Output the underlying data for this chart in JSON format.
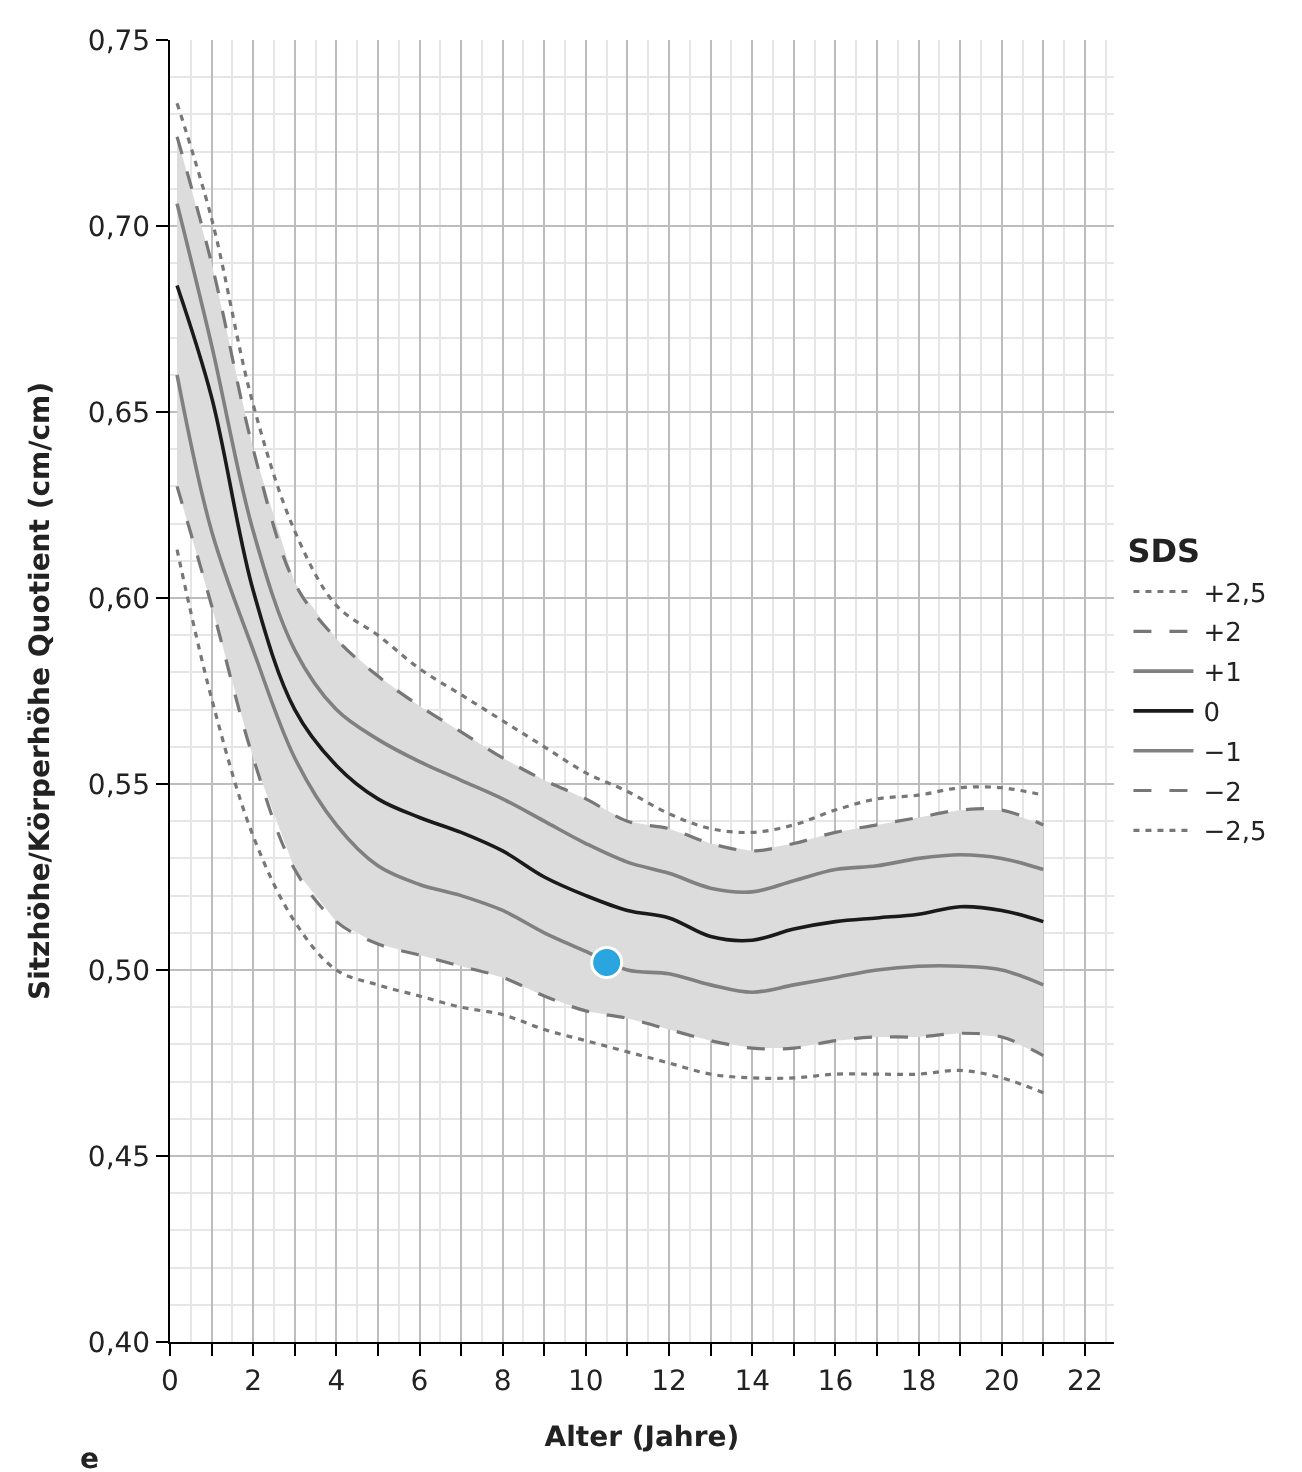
{
  "chart_data": {
    "type": "line",
    "xlabel": "Alter (Jahre)",
    "ylabel": "Sitzhöhe/Körperhöhe Quotient (cm/cm)",
    "legend_title": "SDS",
    "x": [
      0.17,
      1,
      2,
      3,
      4,
      5,
      6,
      7,
      8,
      9,
      10,
      11,
      12,
      13,
      14,
      15,
      16,
      17,
      18,
      19,
      20,
      21
    ],
    "series": [
      {
        "name": "+2,5",
        "color": "#777777",
        "line_style": "dotted",
        "values": [
          0.733,
          0.702,
          0.652,
          0.618,
          0.598,
          0.59,
          0.581,
          0.574,
          0.567,
          0.56,
          0.553,
          0.548,
          0.542,
          0.538,
          0.537,
          0.539,
          0.543,
          0.546,
          0.547,
          0.549,
          0.549,
          0.547
        ]
      },
      {
        "name": "+2",
        "color": "#777777",
        "line_style": "dashed",
        "values": [
          0.724,
          0.69,
          0.64,
          0.604,
          0.589,
          0.579,
          0.571,
          0.564,
          0.557,
          0.551,
          0.546,
          0.54,
          0.538,
          0.534,
          0.532,
          0.534,
          0.537,
          0.539,
          0.541,
          0.543,
          0.543,
          0.539
        ]
      },
      {
        "name": "+1",
        "color": "#808080",
        "line_style": "solid",
        "values": [
          0.706,
          0.668,
          0.618,
          0.586,
          0.57,
          0.562,
          0.556,
          0.551,
          0.546,
          0.54,
          0.534,
          0.529,
          0.526,
          0.522,
          0.521,
          0.524,
          0.527,
          0.528,
          0.53,
          0.531,
          0.53,
          0.527
        ]
      },
      {
        "name": "0",
        "color": "#1a1a1a",
        "line_style": "solid",
        "values": [
          0.684,
          0.654,
          0.602,
          0.57,
          0.555,
          0.546,
          0.541,
          0.537,
          0.532,
          0.525,
          0.52,
          0.516,
          0.514,
          0.509,
          0.508,
          0.511,
          0.513,
          0.514,
          0.515,
          0.517,
          0.516,
          0.513
        ],
        "lower": [
          0.63,
          0.598,
          0.557,
          0.527,
          0.513,
          0.507,
          0.504,
          0.501,
          0.498,
          0.493,
          0.489,
          0.487,
          0.484,
          0.481,
          0.479,
          0.479,
          0.481,
          0.482,
          0.482,
          0.483,
          0.482,
          0.477
        ],
        "upper": [
          0.724,
          0.69,
          0.64,
          0.604,
          0.589,
          0.579,
          0.571,
          0.564,
          0.557,
          0.551,
          0.546,
          0.54,
          0.538,
          0.534,
          0.532,
          0.534,
          0.537,
          0.539,
          0.541,
          0.543,
          0.543,
          0.539
        ]
      },
      {
        "name": "−1",
        "color": "#808080",
        "line_style": "solid",
        "values": [
          0.66,
          0.618,
          0.586,
          0.557,
          0.539,
          0.528,
          0.523,
          0.52,
          0.516,
          0.51,
          0.505,
          0.5,
          0.499,
          0.496,
          0.494,
          0.496,
          0.498,
          0.5,
          0.501,
          0.501,
          0.5,
          0.496
        ]
      },
      {
        "name": "−2",
        "color": "#777777",
        "line_style": "dashed",
        "values": [
          0.63,
          0.598,
          0.557,
          0.527,
          0.513,
          0.507,
          0.504,
          0.501,
          0.498,
          0.493,
          0.489,
          0.487,
          0.484,
          0.481,
          0.479,
          0.479,
          0.481,
          0.482,
          0.482,
          0.483,
          0.482,
          0.477
        ]
      },
      {
        "name": "−2,5",
        "color": "#777777",
        "line_style": "dotted",
        "values": [
          0.613,
          0.573,
          0.536,
          0.513,
          0.5,
          0.496,
          0.493,
          0.49,
          0.488,
          0.484,
          0.481,
          0.478,
          0.475,
          0.472,
          0.471,
          0.471,
          0.472,
          0.472,
          0.472,
          0.473,
          0.471,
          0.467
        ]
      },
      {
        "type": "scatter",
        "marker": "circle",
        "color": "#2aa5e0",
        "x": [
          10.5
        ],
        "values": [
          0.502
        ]
      }
    ],
    "xlim": [
      0,
      22.7
    ],
    "ylim": [
      0.4,
      0.75
    ],
    "xticks": [
      0,
      {
        "value": 1,
        "label": null
      },
      2,
      {
        "value": 3,
        "label": null
      },
      4,
      {
        "value": 5,
        "label": null
      },
      6,
      {
        "value": 7,
        "label": null
      },
      8,
      {
        "value": 9,
        "label": null
      },
      10,
      {
        "value": 11,
        "label": null
      },
      12,
      {
        "value": 13,
        "label": null
      },
      14,
      {
        "value": 15,
        "label": null
      },
      16,
      {
        "value": 17,
        "label": null
      },
      18,
      {
        "value": 19,
        "label": null
      },
      20,
      {
        "value": 21,
        "label": null
      },
      22
    ],
    "yticks": [
      {
        "value": 0.4,
        "label": "0,40"
      },
      {
        "value": 0.45,
        "label": "0,45"
      },
      {
        "value": 0.5,
        "label": "0,50"
      },
      {
        "value": 0.55,
        "label": "0,55"
      },
      {
        "value": 0.6,
        "label": "0,60"
      },
      {
        "value": 0.65,
        "label": "0,65"
      },
      {
        "value": 0.7,
        "label": "0,70"
      },
      {
        "value": 0.75,
        "label": "0,75"
      }
    ],
    "grid": true,
    "legend": "right",
    "marker": "none",
    "annotations": [
      "e"
    ]
  }
}
